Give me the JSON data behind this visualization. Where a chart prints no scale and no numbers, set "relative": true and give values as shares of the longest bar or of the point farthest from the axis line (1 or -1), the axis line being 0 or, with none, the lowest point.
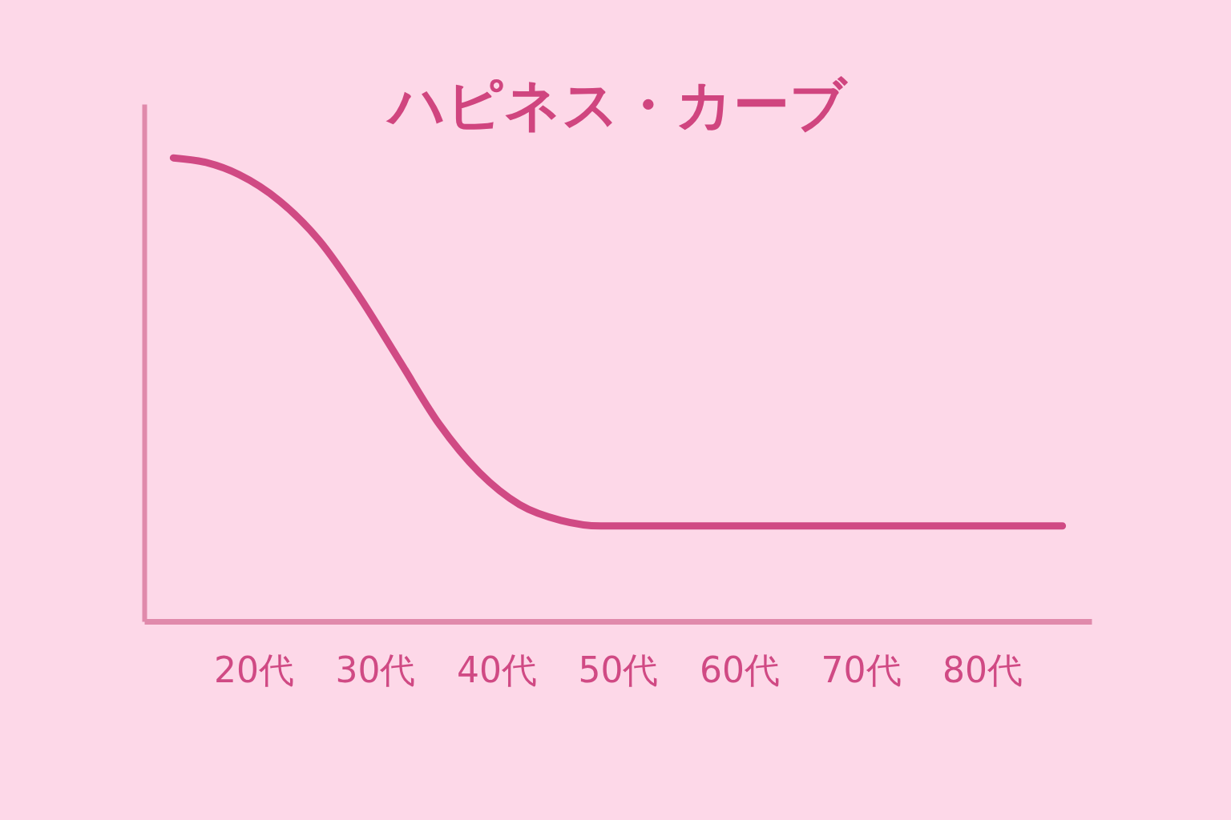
{
  "chart_data": {
    "type": "line",
    "title": "ハピネス・カーブ",
    "relative": true,
    "xlim": [
      11,
      89
    ],
    "xticks": [
      {
        "value": 20,
        "label": "20代"
      },
      {
        "value": 30,
        "label": "30代"
      },
      {
        "value": 40,
        "label": "40代"
      },
      {
        "value": 50,
        "label": "50代"
      },
      {
        "value": 60,
        "label": "60代"
      },
      {
        "value": 70,
        "label": "70代"
      },
      {
        "value": 80,
        "label": "80代"
      }
    ],
    "x": [
      13.4,
      16.1,
      18.8,
      22.1,
      25.4,
      28.7,
      32.0,
      35.3,
      38.6,
      41.9,
      45.3,
      48.6,
      65.1,
      86.6
    ],
    "series": [
      {
        "color": "#d04a84",
        "values": [
          1.0,
          0.99,
          0.964,
          0.908,
          0.822,
          0.701,
          0.563,
          0.425,
          0.321,
          0.252,
          0.218,
          0.206,
          0.206,
          0.206
        ]
      }
    ],
    "grid": false,
    "marker": "none",
    "line_style": "solid"
  }
}
